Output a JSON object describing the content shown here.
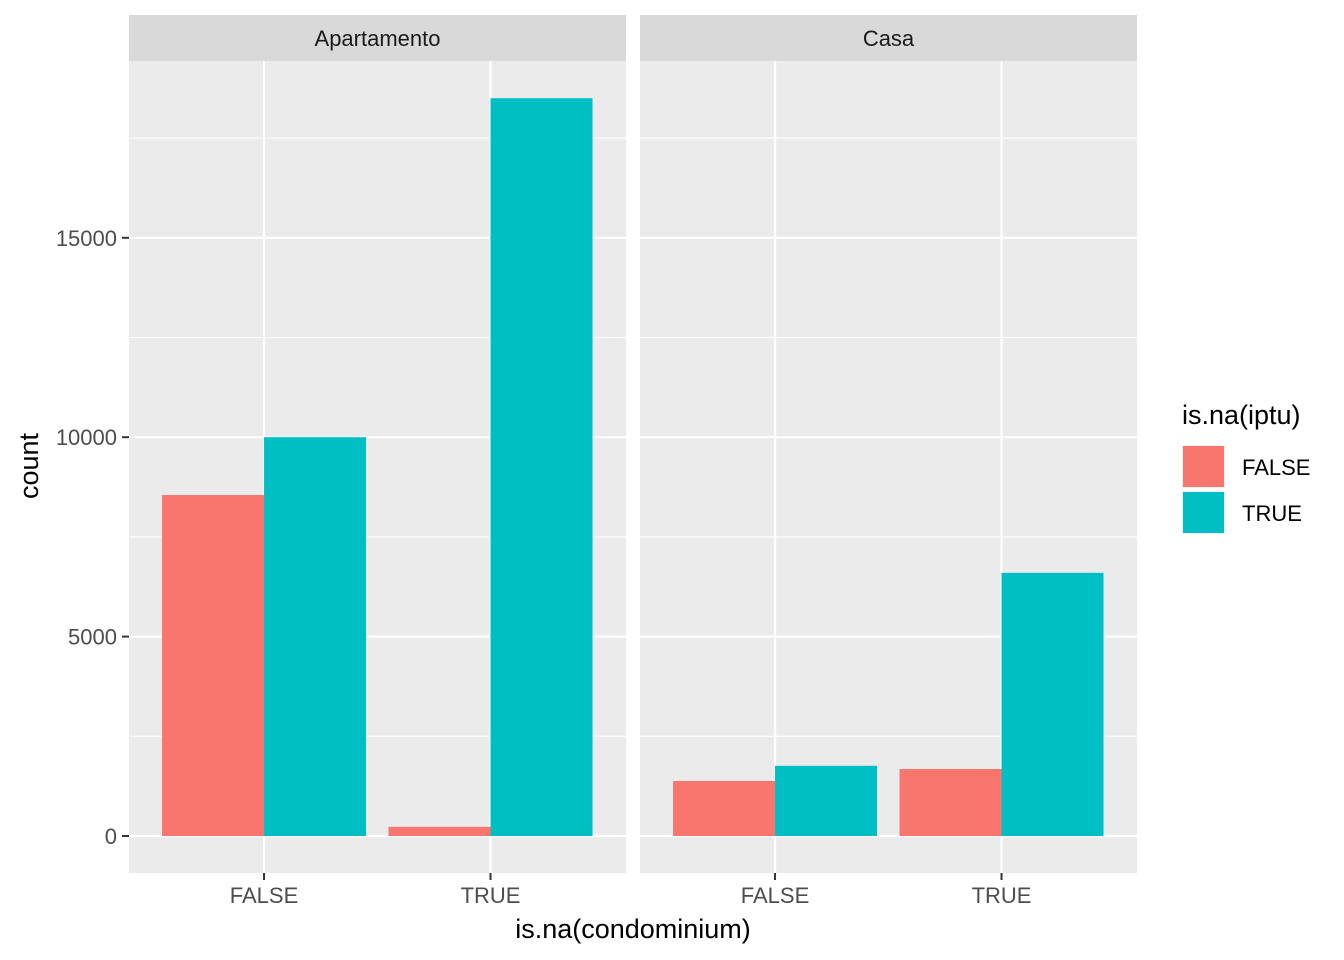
{
  "chart_data": {
    "type": "bar",
    "facet_variable": "type",
    "facets": [
      "Apartamento",
      "Casa"
    ],
    "categories": [
      "FALSE",
      "TRUE"
    ],
    "xlabel": "is.na(condominium)",
    "ylabel": "count",
    "ylim": [
      0,
      19000
    ],
    "yticks": [
      0,
      5000,
      10000,
      15000
    ],
    "grid": true,
    "legend": {
      "title": "is.na(iptu)",
      "position": "right",
      "entries": [
        "FALSE",
        "TRUE"
      ]
    },
    "series": [
      {
        "name": "FALSE",
        "color": "#F8766D",
        "values": {
          "Apartamento": [
            8550,
            230
          ],
          "Casa": [
            1380,
            1680
          ]
        }
      },
      {
        "name": "TRUE",
        "color": "#00BFC4",
        "values": {
          "Apartamento": [
            10000,
            18500
          ],
          "Casa": [
            1760,
            6600
          ]
        }
      }
    ]
  }
}
